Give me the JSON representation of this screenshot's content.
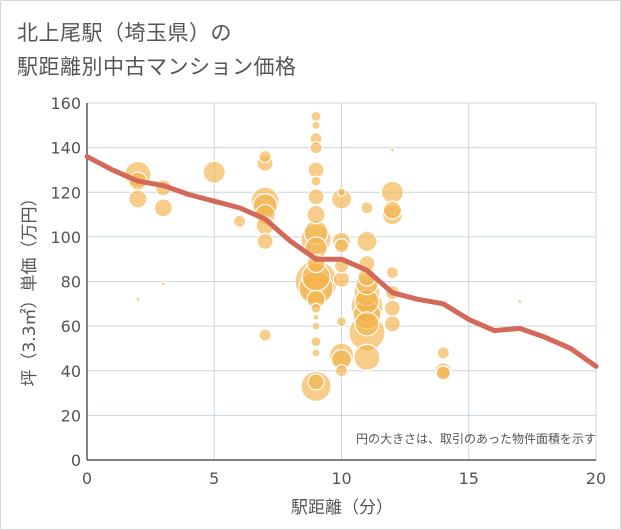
{
  "title_lines": [
    "北上尾駅（埼玉県）の",
    "駅距離別中古マンション価格"
  ],
  "chart_data": {
    "type": "scatter",
    "title": "北上尾駅（埼玉県）の駅距離別中古マンション価格",
    "xlabel": "駅距離（分）",
    "ylabel": "坪（3.3㎡）単価（万円）",
    "xlim": [
      0,
      20
    ],
    "ylim": [
      0,
      160
    ],
    "xticks": [
      0,
      5,
      10,
      15,
      20
    ],
    "yticks": [
      0,
      20,
      40,
      60,
      80,
      100,
      120,
      140,
      160
    ],
    "grid": true,
    "annotation": "円の大きさは、取引のあった物件面積を示す",
    "colors": {
      "bubble_fill": "#f3b24a",
      "bubble_stroke": "#ffffff",
      "line": "#d4695a",
      "axis_text": "#555555",
      "grid": "#c9d6e2"
    },
    "series": [
      {
        "type": "bubble",
        "points": [
          {
            "x": 2,
            "y": 128,
            "s": 13
          },
          {
            "x": 2,
            "y": 125,
            "s": 9
          },
          {
            "x": 2,
            "y": 117,
            "s": 9
          },
          {
            "x": 2,
            "y": 72,
            "s": 2
          },
          {
            "x": 3,
            "y": 122,
            "s": 8
          },
          {
            "x": 3,
            "y": 113,
            "s": 9
          },
          {
            "x": 3,
            "y": 79,
            "s": 2
          },
          {
            "x": 5,
            "y": 129,
            "s": 11
          },
          {
            "x": 6,
            "y": 107,
            "s": 6
          },
          {
            "x": 7,
            "y": 136,
            "s": 6
          },
          {
            "x": 7,
            "y": 133,
            "s": 8
          },
          {
            "x": 7,
            "y": 116,
            "s": 14
          },
          {
            "x": 7,
            "y": 114,
            "s": 12
          },
          {
            "x": 7,
            "y": 110,
            "s": 10
          },
          {
            "x": 7,
            "y": 105,
            "s": 9
          },
          {
            "x": 7,
            "y": 98,
            "s": 8
          },
          {
            "x": 7,
            "y": 56,
            "s": 6
          },
          {
            "x": 9,
            "y": 154,
            "s": 5
          },
          {
            "x": 9,
            "y": 150,
            "s": 4
          },
          {
            "x": 9,
            "y": 144,
            "s": 6
          },
          {
            "x": 9,
            "y": 140,
            "s": 6
          },
          {
            "x": 9,
            "y": 130,
            "s": 8
          },
          {
            "x": 9,
            "y": 125,
            "s": 5
          },
          {
            "x": 9,
            "y": 118,
            "s": 8
          },
          {
            "x": 9,
            "y": 110,
            "s": 9
          },
          {
            "x": 9,
            "y": 102,
            "s": 12
          },
          {
            "x": 9,
            "y": 99,
            "s": 15
          },
          {
            "x": 9,
            "y": 95,
            "s": 11
          },
          {
            "x": 9,
            "y": 88,
            "s": 9
          },
          {
            "x": 9,
            "y": 82,
            "s": 14
          },
          {
            "x": 9,
            "y": 80,
            "s": 21
          },
          {
            "x": 9,
            "y": 77,
            "s": 17
          },
          {
            "x": 9,
            "y": 72,
            "s": 9
          },
          {
            "x": 9,
            "y": 68,
            "s": 5
          },
          {
            "x": 9,
            "y": 64,
            "s": 3
          },
          {
            "x": 9,
            "y": 60,
            "s": 4
          },
          {
            "x": 9,
            "y": 53,
            "s": 5
          },
          {
            "x": 9,
            "y": 48,
            "s": 4
          },
          {
            "x": 9,
            "y": 35,
            "s": 8
          },
          {
            "x": 9,
            "y": 33,
            "s": 15
          },
          {
            "x": 10,
            "y": 120,
            "s": 4
          },
          {
            "x": 10,
            "y": 117,
            "s": 10
          },
          {
            "x": 10,
            "y": 98,
            "s": 9
          },
          {
            "x": 10,
            "y": 96,
            "s": 7
          },
          {
            "x": 10,
            "y": 87,
            "s": 7
          },
          {
            "x": 10,
            "y": 81,
            "s": 8
          },
          {
            "x": 10,
            "y": 62,
            "s": 5
          },
          {
            "x": 10,
            "y": 47,
            "s": 12
          },
          {
            "x": 10,
            "y": 45,
            "s": 10
          },
          {
            "x": 10,
            "y": 40,
            "s": 6
          },
          {
            "x": 11,
            "y": 113,
            "s": 6
          },
          {
            "x": 11,
            "y": 98,
            "s": 10
          },
          {
            "x": 11,
            "y": 88,
            "s": 8
          },
          {
            "x": 11,
            "y": 82,
            "s": 9
          },
          {
            "x": 11,
            "y": 79,
            "s": 11
          },
          {
            "x": 11,
            "y": 75,
            "s": 13
          },
          {
            "x": 11,
            "y": 71,
            "s": 12
          },
          {
            "x": 11,
            "y": 69,
            "s": 16
          },
          {
            "x": 11,
            "y": 65,
            "s": 14
          },
          {
            "x": 11,
            "y": 61,
            "s": 12
          },
          {
            "x": 11,
            "y": 57,
            "s": 18
          },
          {
            "x": 11,
            "y": 46,
            "s": 13
          },
          {
            "x": 12,
            "y": 139,
            "s": 2
          },
          {
            "x": 12,
            "y": 120,
            "s": 11
          },
          {
            "x": 12,
            "y": 112,
            "s": 9
          },
          {
            "x": 12,
            "y": 110,
            "s": 10
          },
          {
            "x": 12,
            "y": 84,
            "s": 6
          },
          {
            "x": 12,
            "y": 75,
            "s": 7
          },
          {
            "x": 12,
            "y": 68,
            "s": 8
          },
          {
            "x": 12,
            "y": 61,
            "s": 8
          },
          {
            "x": 14,
            "y": 48,
            "s": 6
          },
          {
            "x": 14,
            "y": 40,
            "s": 8
          },
          {
            "x": 14,
            "y": 39,
            "s": 7
          },
          {
            "x": 17,
            "y": 71,
            "s": 2
          }
        ]
      },
      {
        "type": "line",
        "x": [
          0,
          1,
          2,
          3,
          4,
          5,
          6,
          7,
          8,
          9,
          10,
          11,
          12,
          13,
          14,
          15,
          16,
          17,
          18,
          19,
          20
        ],
        "y": [
          136,
          130,
          125,
          123,
          119,
          116,
          113,
          108,
          98,
          90,
          90,
          85,
          75,
          72,
          70,
          63,
          58,
          59,
          55,
          50,
          42
        ]
      }
    ]
  }
}
